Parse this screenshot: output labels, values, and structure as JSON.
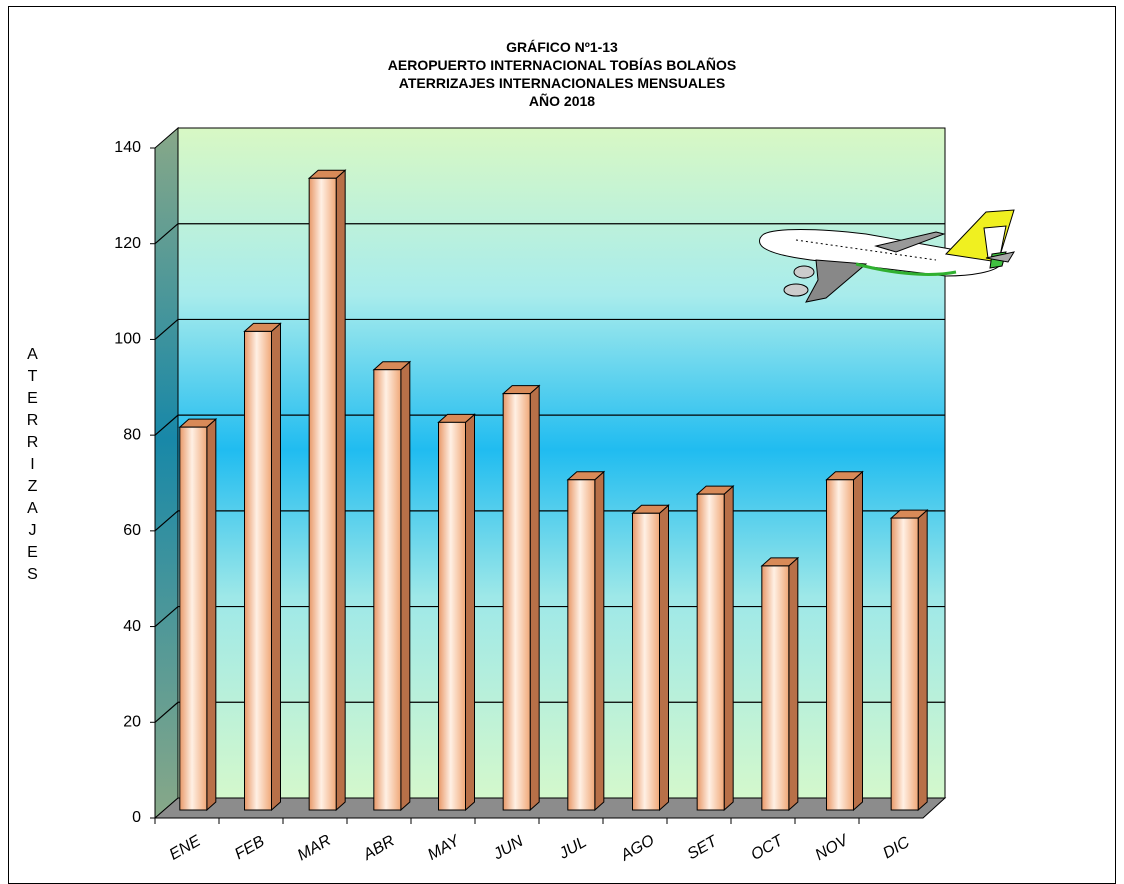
{
  "chart_data": {
    "type": "bar",
    "title": [
      "GRÁFICO Nº1-13",
      "AEROPUERTO INTERNACIONAL TOBÍAS BOLAÑOS",
      "ATERRIZAJES INTERNACIONALES MENSUALES",
      "AÑO 2018"
    ],
    "y_label": "ATERRIZAJES",
    "categories": [
      "ENE",
      "FEB",
      "MAR",
      "ABR",
      "MAY",
      "JUN",
      "JUL",
      "AGO",
      "SET",
      "OCT",
      "NOV",
      "DIC"
    ],
    "values": [
      80,
      100,
      132,
      92,
      81,
      87,
      69,
      62,
      66,
      51,
      69,
      61
    ],
    "color": "#f0b080",
    "ylim": [
      0,
      140
    ],
    "yticks": [
      0,
      20,
      40,
      60,
      80,
      100,
      120,
      140
    ],
    "grid": true
  }
}
